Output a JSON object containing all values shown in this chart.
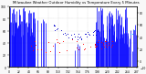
{
  "title": "Milwaukee Weather Outdoor Humidity vs Temperature Every 5 Minutes",
  "bg_color": "#f8f8f8",
  "plot_bg": "#ffffff",
  "bar_color": "#0000ff",
  "dot_color_blue": "#0000cc",
  "dot_color_red": "#ff0000",
  "dot_color_cyan": "#00aaff",
  "grid_color": "#bbbbbb",
  "title_fontsize": 2.8,
  "tick_fontsize": 2.2,
  "n_points": 288,
  "ylim_humidity": [
    0,
    100
  ],
  "ylim_temp": [
    -10,
    90
  ]
}
